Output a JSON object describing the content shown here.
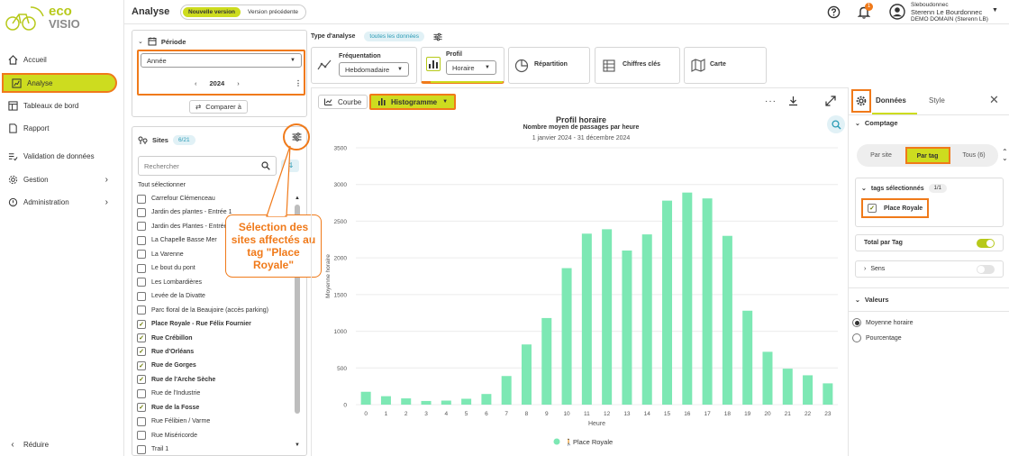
{
  "app": {
    "logo_text_1": "eco",
    "logo_text_2": "VISIO",
    "page_title": "Analyse",
    "version_new": "Nouvelle version",
    "version_prev": "Version précédente"
  },
  "user": {
    "login": "Sleboudonnec",
    "name": "Sterenn Le Bourdonnec",
    "domain": "DEMO DOMAIN (Sterenn LB)",
    "notif_count": "1"
  },
  "nav": [
    {
      "label": "Accueil",
      "icon": "home-icon"
    },
    {
      "label": "Analyse",
      "icon": "chart-icon"
    },
    {
      "label": "Tableaux de bord",
      "icon": "dashboard-icon"
    },
    {
      "label": "Rapport",
      "icon": "report-icon"
    },
    {
      "label": "Validation de données",
      "icon": "validation-icon"
    },
    {
      "label": "Gestion",
      "icon": "gear-icon"
    },
    {
      "label": "Administration",
      "icon": "admin-icon"
    }
  ],
  "reduce_label": "Réduire",
  "period": {
    "title": "Période",
    "granularity": "Année",
    "year": "2024",
    "compare": "Comparer à"
  },
  "sites": {
    "title": "Sites",
    "count": "6/21",
    "search_placeholder": "Rechercher",
    "select_all": "Tout sélectionner",
    "items": [
      {
        "name": "Carrefour Clémenceau",
        "checked": false
      },
      {
        "name": "Jardin des plantes - Entrée 1",
        "checked": false
      },
      {
        "name": "Jardin des Plantes - Entrée 2",
        "checked": false
      },
      {
        "name": "La Chapelle Basse Mer",
        "checked": false
      },
      {
        "name": "La Varenne",
        "checked": false
      },
      {
        "name": "Le bout du pont",
        "checked": false
      },
      {
        "name": "Les Lombardières",
        "checked": false
      },
      {
        "name": "Levée de la Divatte",
        "checked": false
      },
      {
        "name": "Parc floral de la Beaujoire (accès parking)",
        "checked": false
      },
      {
        "name": "Place Royale - Rue Félix Fournier",
        "checked": true
      },
      {
        "name": "Rue Crébillon",
        "checked": true
      },
      {
        "name": "Rue d'Orléans",
        "checked": true
      },
      {
        "name": "Rue de Gorges",
        "checked": true
      },
      {
        "name": "Rue de l'Arche Sèche",
        "checked": true
      },
      {
        "name": "Rue de l'Industrie",
        "checked": false
      },
      {
        "name": "Rue de la Fosse",
        "checked": true
      },
      {
        "name": "Rue Félibien / Varme",
        "checked": false
      },
      {
        "name": "Rue Miséricorde",
        "checked": false
      },
      {
        "name": "Trail 1",
        "checked": false
      }
    ]
  },
  "callout": "Sélection des sites affectés au tag \"Place Royale\"",
  "analysis": {
    "type_label": "Type d'analyse",
    "all_data": "toutes les données",
    "frequentation": "Fréquentation",
    "freq_value": "Hebdomadaire",
    "profil": "Profil",
    "profil_value": "Horaire",
    "repartition": "Répartition",
    "chiffres": "Chiffres clés",
    "carte": "Carte"
  },
  "chart_tabs": {
    "courbe": "Courbe",
    "histogramme": "Histogramme"
  },
  "colors": {
    "accent": "#cddc1f",
    "orange": "#f07a1a",
    "bar": "#7de8b4",
    "teal": "#2a9bb5"
  },
  "chart_data": {
    "type": "bar",
    "title": "Profil horaire",
    "subtitle": "Nombre moyen de passages par heure",
    "date_range": "1 janvier 2024 - 31 décembre 2024",
    "xlabel": "Heure",
    "ylabel": "Moyenne horaire",
    "ylim": [
      0,
      3500
    ],
    "yticks": [
      "0",
      "500",
      "1000",
      "1500",
      "2000",
      "2500",
      "3000",
      "3500"
    ],
    "categories": [
      "0",
      "1",
      "2",
      "3",
      "4",
      "5",
      "6",
      "7",
      "8",
      "9",
      "10",
      "11",
      "12",
      "13",
      "14",
      "15",
      "16",
      "17",
      "18",
      "19",
      "20",
      "21",
      "22",
      "23"
    ],
    "series": [
      {
        "name": "Place Royale",
        "values": [
          175,
          115,
          85,
          50,
          55,
          80,
          145,
          390,
          820,
          1180,
          1860,
          2330,
          2390,
          2100,
          2320,
          2780,
          2890,
          2810,
          2300,
          1280,
          720,
          490,
          400,
          290
        ]
      }
    ],
    "legend": "bottom",
    "grid": true
  },
  "right_panel": {
    "tab_data": "Données",
    "tab_style": "Style",
    "comptage": "Comptage",
    "par_site": "Par site",
    "par_tag": "Par tag",
    "tous": "Tous (6)",
    "tags_selected": "tags sélectionnés",
    "tags_count": "1/1",
    "tag_name": "Place Royale",
    "total_par_tag": "Total par Tag",
    "sens": "Sens",
    "valeurs": "Valeurs",
    "moyenne": "Moyenne horaire",
    "pourcentage": "Pourcentage"
  }
}
